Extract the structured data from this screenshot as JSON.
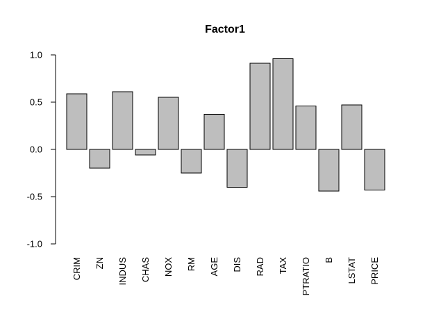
{
  "chart_data": {
    "type": "bar",
    "title": "Factor1",
    "xlabel": "",
    "ylabel": "",
    "categories": [
      "CRIM",
      "ZN",
      "INDUS",
      "CHAS",
      "NOX",
      "RM",
      "AGE",
      "DIS",
      "RAD",
      "TAX",
      "PTRATIO",
      "B",
      "LSTAT",
      "PRICE"
    ],
    "values": [
      0.59,
      -0.2,
      0.61,
      -0.06,
      0.55,
      -0.25,
      0.37,
      -0.4,
      0.91,
      0.96,
      0.46,
      -0.44,
      0.47,
      -0.43
    ],
    "ylim": [
      -1.0,
      1.0
    ],
    "yticks": [
      "-1.0",
      "-0.5",
      "0.0",
      "0.5",
      "1.0"
    ],
    "grid": false,
    "legend": "none",
    "bar_color": "#bebebe",
    "label_orientation": "vertical"
  }
}
